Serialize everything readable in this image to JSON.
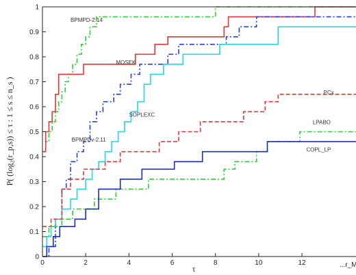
{
  "chart_data": {
    "type": "line",
    "title": "",
    "xlabel": "τ",
    "ylabel": "P( (log₂(r_p,s)) ≤ τ : 1 ≤ s ≤ n_s )",
    "x_end_label": "...r_M",
    "xlim": [
      0,
      14.5
    ],
    "ylim": [
      0,
      1
    ],
    "xticks": [
      0,
      2,
      4,
      6,
      8,
      10,
      12
    ],
    "yticks": [
      0,
      0.1,
      0.2,
      0.3,
      0.4,
      0.5,
      0.6,
      0.7,
      0.8,
      0.9,
      1
    ],
    "grid": false,
    "legend": "labels placed next to curves",
    "series": [
      {
        "name": "BPMPD-2.14",
        "color": "#2bd12b",
        "style": "dashdot",
        "x": [
          0,
          0.15,
          0.3,
          0.45,
          0.6,
          0.75,
          0.9,
          1.05,
          1.2,
          1.4,
          1.6,
          1.8,
          2.0,
          2.2,
          2.5,
          3.0,
          8.0,
          14.5
        ],
        "y": [
          0.42,
          0.46,
          0.5,
          0.54,
          0.58,
          0.62,
          0.66,
          0.7,
          0.73,
          0.77,
          0.81,
          0.85,
          0.88,
          0.92,
          0.96,
          0.96,
          1.0,
          1.0
        ]
      },
      {
        "name": "MOSEK",
        "color": "#e53535",
        "style": "solid",
        "x": [
          0,
          0.15,
          0.3,
          0.45,
          0.6,
          0.75,
          1.9,
          4.3,
          5.2,
          5.8,
          6.4,
          8.4,
          8.6,
          10.4,
          12.6,
          14.5
        ],
        "y": [
          0.42,
          0.5,
          0.54,
          0.58,
          0.65,
          0.73,
          0.77,
          0.81,
          0.85,
          0.88,
          0.88,
          0.92,
          0.96,
          0.96,
          1.0,
          1.0
        ]
      },
      {
        "name": "BPMPDv-2.11",
        "color": "#2040e0",
        "style": "dashdot",
        "x": [
          0,
          0.3,
          0.6,
          0.9,
          1.1,
          1.3,
          1.6,
          1.9,
          2.2,
          2.5,
          2.8,
          3.3,
          3.6,
          4.1,
          4.5,
          5.8,
          6.3,
          8.5,
          9.1,
          9.9,
          14.5
        ],
        "y": [
          0.0,
          0.04,
          0.15,
          0.27,
          0.31,
          0.38,
          0.42,
          0.46,
          0.54,
          0.58,
          0.62,
          0.65,
          0.69,
          0.73,
          0.77,
          0.81,
          0.85,
          0.88,
          0.92,
          0.96,
          0.96
        ]
      },
      {
        "name": "SOPLEXC",
        "color": "#22d6e6",
        "style": "solid",
        "x": [
          0,
          0.2,
          0.4,
          0.6,
          0.9,
          1.3,
          1.6,
          2.0,
          2.3,
          2.6,
          2.9,
          3.2,
          3.5,
          3.8,
          4.1,
          4.4,
          4.7,
          5.0,
          5.6,
          6.5,
          8.2,
          10.9,
          14.5
        ],
        "y": [
          0.04,
          0.08,
          0.12,
          0.15,
          0.19,
          0.23,
          0.27,
          0.31,
          0.35,
          0.38,
          0.42,
          0.46,
          0.5,
          0.54,
          0.58,
          0.62,
          0.69,
          0.73,
          0.77,
          0.81,
          0.85,
          0.92,
          0.92
        ]
      },
      {
        "name": "PCx",
        "color": "#e53535",
        "style": "dashed",
        "x": [
          0,
          0.4,
          0.9,
          1.3,
          1.9,
          2.9,
          3.6,
          4.4,
          5.4,
          6.3,
          7.3,
          8.3,
          9.3,
          10.3,
          10.9,
          12.0,
          14.5
        ],
        "y": [
          0.12,
          0.15,
          0.27,
          0.31,
          0.35,
          0.38,
          0.42,
          0.42,
          0.46,
          0.5,
          0.54,
          0.54,
          0.58,
          0.62,
          0.65,
          0.65,
          0.65
        ]
      },
      {
        "name": "LPABO",
        "color": "#2bd12b",
        "style": "dashdot",
        "x": [
          0,
          0.3,
          0.9,
          1.4,
          2.4,
          3.4,
          4.9,
          6.4,
          8.4,
          8.9,
          9.9,
          10.4,
          11.4,
          11.9,
          14.5
        ],
        "y": [
          0.08,
          0.12,
          0.15,
          0.19,
          0.23,
          0.27,
          0.31,
          0.31,
          0.35,
          0.38,
          0.42,
          0.46,
          0.46,
          0.5,
          0.5
        ]
      },
      {
        "name": "COPL_LP",
        "color": "#1a2ad0",
        "style": "solid",
        "x": [
          0,
          0.2,
          0.5,
          0.8,
          1.5,
          2.0,
          2.6,
          3.6,
          4.6,
          6.1,
          7.4,
          8.9,
          10.4,
          14.5
        ],
        "y": [
          0.0,
          0.04,
          0.08,
          0.12,
          0.15,
          0.19,
          0.27,
          0.31,
          0.35,
          0.38,
          0.42,
          0.42,
          0.46,
          0.46
        ]
      }
    ],
    "labels": [
      {
        "series": "BPMPD-2.14",
        "text": "BPMPD-2.14",
        "x": 1.3,
        "y": 0.94
      },
      {
        "series": "MOSEK",
        "text": "MOSEK",
        "x": 3.4,
        "y": 0.77
      },
      {
        "series": "BPMPDv-2.11",
        "text": "BPMPDv-2.11",
        "x": 1.35,
        "y": 0.46
      },
      {
        "series": "SOPLEXC",
        "text": "SOPLEXC",
        "x": 4.0,
        "y": 0.56
      },
      {
        "series": "PCx",
        "text": "PCx",
        "x": 13.0,
        "y": 0.65
      },
      {
        "series": "LPABO",
        "text": "LPABO",
        "x": 12.5,
        "y": 0.53
      },
      {
        "series": "COPL_LP",
        "text": "COPL_LP",
        "x": 12.2,
        "y": 0.42
      }
    ]
  }
}
